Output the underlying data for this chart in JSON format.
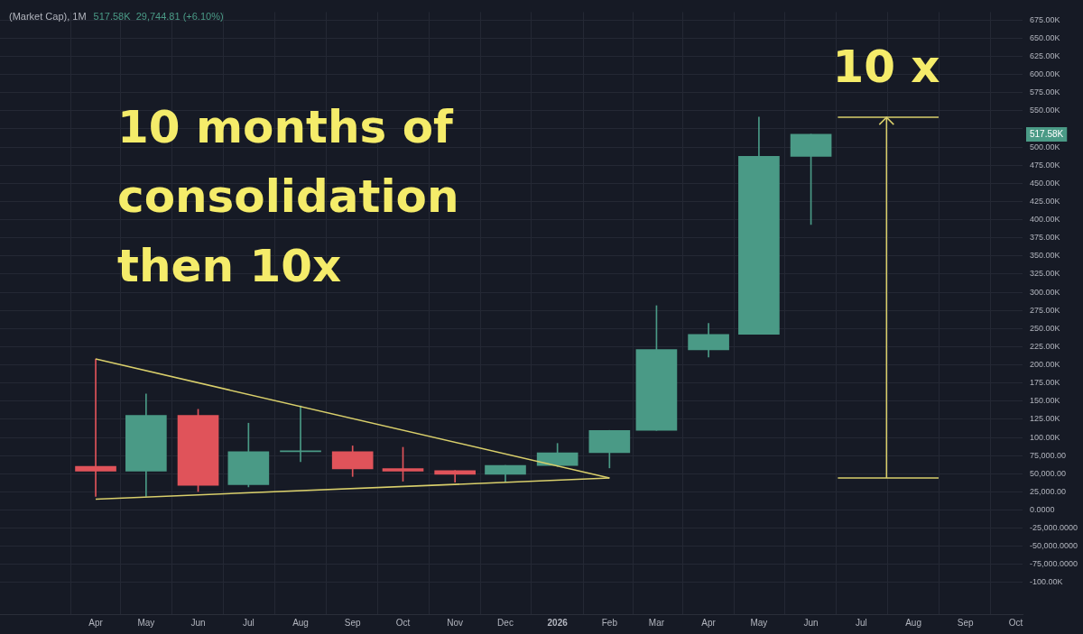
{
  "chart_data": {
    "type": "candlestick",
    "title": "(Market Cap), 1M",
    "annotations": [
      "517.58K  29,744.81 (+6.10%)",
      "10 months of\nconsolidation\nthen 10x",
      "10 x",
      "517.58K"
    ],
    "x": [
      "2025-04",
      "2025-05",
      "2025-06",
      "2025-07",
      "2025-08",
      "2025-09",
      "2025-10",
      "2025-11",
      "2025-12",
      "2026-01",
      "2026-02",
      "2026-03",
      "2026-04",
      "2026-05",
      "2026-06"
    ],
    "ohlc": [
      [
        60100,
        208000,
        18700,
        53500
      ],
      [
        53500,
        160000,
        18700,
        130400
      ],
      [
        130400,
        138700,
        25500,
        34000
      ],
      [
        34800,
        119600,
        31800,
        80400
      ],
      [
        80400,
        143500,
        66500,
        81000
      ],
      [
        80400,
        88300,
        46200,
        56600
      ],
      [
        57000,
        86400,
        39700,
        53500
      ],
      [
        54400,
        54400,
        38300,
        49100
      ],
      [
        49100,
        61300,
        38300,
        61300
      ],
      [
        61300,
        91700,
        60000,
        78700
      ],
      [
        79000,
        109700,
        58000,
        109700
      ],
      [
        109700,
        281500,
        109700,
        221000
      ],
      [
        220600,
        257000,
        210700,
        242000
      ],
      [
        242000,
        541300,
        242000,
        487300
      ],
      [
        487300,
        517580,
        393300,
        517580
      ]
    ],
    "colors": [
      "#e0535a",
      "#4a9a86",
      "#e0535a",
      "#4a9a86",
      "#4a9a86",
      "#e0535a",
      "#e0535a",
      "#e0535a",
      "#4a9a86",
      "#4a9a86",
      "#4a9a86",
      "#4a9a86",
      "#4a9a86",
      "#4a9a86",
      "#4a9a86"
    ],
    "series": [
      {
        "type": "line",
        "color": "#d9cf6b",
        "x": [
          "2025-04",
          "2026-02"
        ],
        "values": [
          208000,
          44000
        ]
      },
      {
        "type": "line",
        "color": "#d9cf6b",
        "x": [
          "2025-04",
          "2026-02"
        ],
        "values": [
          15000,
          44000
        ]
      },
      {
        "type": "line",
        "color": "#d9cf6b",
        "x": [
          "2026-07-16",
          "2026-07-16"
        ],
        "values": [
          44000,
          541000
        ]
      },
      {
        "type": "line",
        "color": "#d9cf6b",
        "x": [
          "2026-06-17",
          "2026-08-16"
        ],
        "values": [
          44000,
          44000
        ]
      },
      {
        "type": "line",
        "color": "#d9cf6b",
        "x": [
          "2026-06-17",
          "2026-08-16"
        ],
        "values": [
          541000,
          541000
        ]
      }
    ],
    "marker": "none",
    "line_style": "solid",
    "grid": true,
    "legend": false,
    "xlim": [
      "2025-02-03",
      "2026-10-05"
    ],
    "xticks": [
      {
        "value": "2025-04",
        "label": "Apr"
      },
      {
        "value": "2025-05",
        "label": "May"
      },
      {
        "value": "2025-06",
        "label": "Jun"
      },
      {
        "value": "2025-07",
        "label": "Jul"
      },
      {
        "value": "2025-08",
        "label": "Aug"
      },
      {
        "value": "2025-09",
        "label": "Sep"
      },
      {
        "value": "2025-10",
        "label": "Oct"
      },
      {
        "value": "2025-11",
        "label": "Nov"
      },
      {
        "value": "2025-12",
        "label": "Dec"
      },
      {
        "value": "2026-01",
        "label": "2026"
      },
      {
        "value": "2026-02",
        "label": "Feb"
      },
      {
        "value": "2026-03",
        "label": "Mar"
      },
      {
        "value": "2026-04",
        "label": "Apr"
      },
      {
        "value": "2026-05",
        "label": "May"
      },
      {
        "value": "2026-06",
        "label": "Jun"
      },
      {
        "value": "2026-07",
        "label": "Jul"
      },
      {
        "value": "2026-08",
        "label": "Aug"
      },
      {
        "value": "2026-09",
        "label": "Sep"
      },
      {
        "value": "2026-10",
        "label": "Oct"
      }
    ],
    "ylim": [
      -143500,
      686000
    ],
    "yticks": [
      {
        "value": 675000,
        "label": "675.00K"
      },
      {
        "value": 650000,
        "label": "650.00K"
      },
      {
        "value": 625000,
        "label": "625.00K"
      },
      {
        "value": 600000,
        "label": "600.00K"
      },
      {
        "value": 575000,
        "label": "575.00K"
      },
      {
        "value": 550000,
        "label": "550.00K"
      },
      {
        "value": 525000,
        "label": null
      },
      {
        "value": 500000,
        "label": "500.00K"
      },
      {
        "value": 475000,
        "label": "475.00K"
      },
      {
        "value": 450000,
        "label": "450.00K"
      },
      {
        "value": 425000,
        "label": "425.00K"
      },
      {
        "value": 400000,
        "label": "400.00K"
      },
      {
        "value": 375000,
        "label": "375.00K"
      },
      {
        "value": 350000,
        "label": "350.00K"
      },
      {
        "value": 325000,
        "label": "325.00K"
      },
      {
        "value": 300000,
        "label": "300.00K"
      },
      {
        "value": 275000,
        "label": "275.00K"
      },
      {
        "value": 250000,
        "label": "250.00K"
      },
      {
        "value": 225000,
        "label": "225.00K"
      },
      {
        "value": 200000,
        "label": "200.00K"
      },
      {
        "value": 175000,
        "label": "175.00K"
      },
      {
        "value": 150000,
        "label": "150.00K"
      },
      {
        "value": 125000,
        "label": "125.00K"
      },
      {
        "value": 100000,
        "label": "100.00K"
      },
      {
        "value": 75000,
        "label": "75,000.00"
      },
      {
        "value": 50000,
        "label": "50,000.00"
      },
      {
        "value": 25000,
        "label": "25,000.00"
      },
      {
        "value": 0,
        "label": "0.0000"
      },
      {
        "value": -25000,
        "label": "-25,000.0000"
      },
      {
        "value": -50000,
        "label": "-50,000.0000"
      },
      {
        "value": -75000,
        "label": "-75,000.0000"
      },
      {
        "value": -100000,
        "label": "-100.00K"
      }
    ]
  }
}
